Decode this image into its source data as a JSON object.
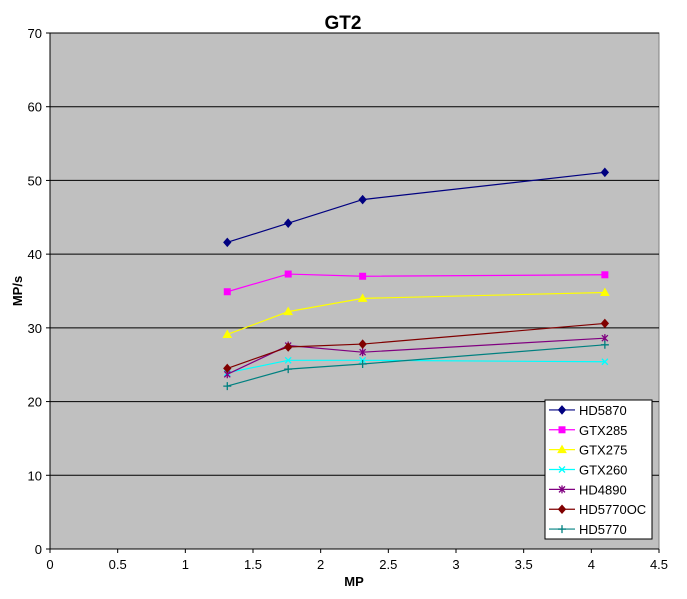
{
  "chart_data": {
    "type": "line",
    "title": "GT2",
    "xlabel": "MP",
    "ylabel": "MP/s",
    "xlim": [
      0,
      4.5
    ],
    "ylim": [
      0,
      70
    ],
    "x_ticks": [
      "0",
      "0.5",
      "1",
      "1.5",
      "2",
      "2.5",
      "3",
      "3.5",
      "4",
      "4.5"
    ],
    "y_ticks": [
      "0",
      "10",
      "20",
      "30",
      "40",
      "50",
      "60",
      "70"
    ],
    "grid": "horizontal",
    "legend_position": "bottom-right",
    "plot_background": "#c0c0c0",
    "x": [
      1.31,
      1.76,
      2.31,
      4.1
    ],
    "series": [
      {
        "name": "HD5870",
        "color": "#000080",
        "marker": "diamond",
        "values": [
          41.6,
          44.2,
          47.4,
          51.1
        ]
      },
      {
        "name": "GTX285",
        "color": "#ff00ff",
        "marker": "square",
        "values": [
          34.9,
          37.3,
          37.0,
          37.2
        ]
      },
      {
        "name": "GTX275",
        "color": "#ffff00",
        "marker": "triangle",
        "values": [
          29.1,
          32.2,
          34.0,
          34.8
        ]
      },
      {
        "name": "GTX260",
        "color": "#00ffff",
        "marker": "x",
        "values": [
          23.9,
          25.6,
          25.6,
          25.4
        ]
      },
      {
        "name": "HD4890",
        "color": "#800080",
        "marker": "star",
        "values": [
          23.7,
          27.6,
          26.7,
          28.6
        ]
      },
      {
        "name": "HD5770OC",
        "color": "#800000",
        "marker": "diamond",
        "values": [
          24.5,
          27.4,
          27.8,
          30.6
        ]
      },
      {
        "name": "HD5770",
        "color": "#008080",
        "marker": "plus",
        "values": [
          22.1,
          24.4,
          25.1,
          27.7
        ]
      }
    ]
  }
}
